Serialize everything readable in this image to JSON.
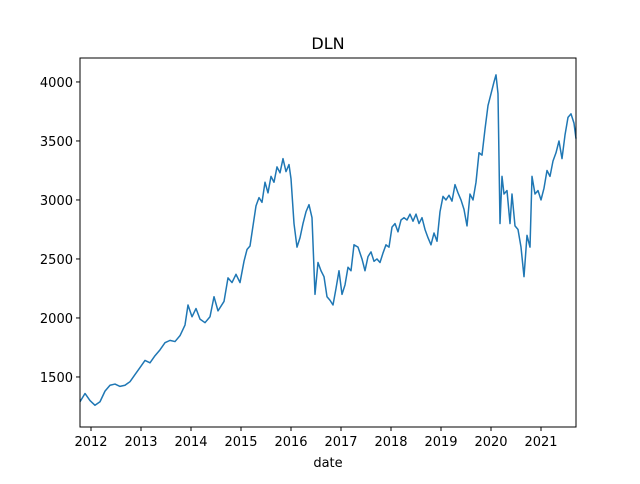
{
  "chart_data": {
    "type": "line",
    "title": "DLN",
    "xlabel": "date",
    "x": [
      2011.78,
      2011.88,
      2011.98,
      2012.08,
      2012.18,
      2012.28,
      2012.38,
      2012.48,
      2012.58,
      2012.68,
      2012.78,
      2012.88,
      2012.98,
      2013.08,
      2013.18,
      2013.28,
      2013.38,
      2013.48,
      2013.58,
      2013.68,
      2013.78,
      2013.88,
      2013.94,
      2014.02,
      2014.1,
      2014.18,
      2014.28,
      2014.38,
      2014.46,
      2014.54,
      2014.66,
      2014.74,
      2014.82,
      2014.9,
      2014.98,
      2015.06,
      2015.12,
      2015.18,
      2015.24,
      2015.3,
      2015.36,
      2015.42,
      2015.48,
      2015.54,
      2015.6,
      2015.66,
      2015.72,
      2015.78,
      2015.84,
      2015.9,
      2015.96,
      2016.0,
      2016.06,
      2016.12,
      2016.18,
      2016.24,
      2016.3,
      2016.36,
      2016.42,
      2016.48,
      2016.54,
      2016.6,
      2016.66,
      2016.72,
      2016.78,
      2016.84,
      2016.9,
      2016.96,
      2017.02,
      2017.08,
      2017.14,
      2017.2,
      2017.26,
      2017.34,
      2017.42,
      2017.48,
      2017.54,
      2017.6,
      2017.66,
      2017.72,
      2017.78,
      2017.84,
      2017.9,
      2017.96,
      2018.02,
      2018.08,
      2018.14,
      2018.2,
      2018.26,
      2018.32,
      2018.38,
      2018.44,
      2018.5,
      2018.56,
      2018.62,
      2018.68,
      2018.74,
      2018.8,
      2018.86,
      2018.92,
      2018.98,
      2019.04,
      2019.1,
      2019.16,
      2019.22,
      2019.28,
      2019.34,
      2019.4,
      2019.46,
      2019.52,
      2019.58,
      2019.64,
      2019.7,
      2019.76,
      2019.82,
      2019.88,
      2019.94,
      2020.0,
      2020.06,
      2020.1,
      2020.14,
      2020.18,
      2020.22,
      2020.26,
      2020.32,
      2020.38,
      2020.42,
      2020.48,
      2020.54,
      2020.6,
      2020.66,
      2020.72,
      2020.78,
      2020.82,
      2020.88,
      2020.94,
      2021.0,
      2021.06,
      2021.12,
      2021.18,
      2021.24,
      2021.3,
      2021.36,
      2021.42,
      2021.48,
      2021.54,
      2021.6,
      2021.66,
      2021.7
    ],
    "series": [
      {
        "name": "DLN",
        "color": "#1f77b4",
        "values": [
          1290,
          1360,
          1300,
          1260,
          1290,
          1380,
          1430,
          1440,
          1420,
          1430,
          1460,
          1520,
          1580,
          1640,
          1620,
          1680,
          1730,
          1790,
          1810,
          1800,
          1850,
          1940,
          2110,
          2010,
          2080,
          1990,
          1960,
          2010,
          2180,
          2060,
          2140,
          2340,
          2300,
          2370,
          2300,
          2480,
          2580,
          2610,
          2780,
          2950,
          3020,
          2980,
          3150,
          3060,
          3200,
          3150,
          3280,
          3230,
          3350,
          3240,
          3300,
          3180,
          2800,
          2600,
          2680,
          2800,
          2900,
          2960,
          2850,
          2200,
          2470,
          2400,
          2350,
          2180,
          2150,
          2110,
          2250,
          2400,
          2200,
          2280,
          2430,
          2400,
          2620,
          2600,
          2500,
          2400,
          2520,
          2560,
          2480,
          2500,
          2470,
          2550,
          2620,
          2600,
          2770,
          2800,
          2730,
          2830,
          2850,
          2830,
          2880,
          2820,
          2880,
          2800,
          2850,
          2750,
          2680,
          2620,
          2720,
          2650,
          2900,
          3030,
          3000,
          3040,
          2990,
          3130,
          3060,
          3000,
          2920,
          2780,
          3050,
          3000,
          3150,
          3400,
          3380,
          3600,
          3800,
          3900,
          4000,
          4060,
          3900,
          2800,
          3200,
          3050,
          3080,
          2800,
          3050,
          2780,
          2750,
          2600,
          2350,
          2700,
          2600,
          3200,
          3050,
          3080,
          3000,
          3100,
          3250,
          3200,
          3330,
          3400,
          3500,
          3350,
          3550,
          3700,
          3730,
          3650,
          3520
        ]
      }
    ],
    "xlim": [
      2011.78,
      2021.7
    ],
    "xticks": [
      2012,
      2013,
      2014,
      2015,
      2016,
      2017,
      2018,
      2019,
      2020,
      2021
    ],
    "ylim": [
      1076,
      4203
    ],
    "yticks": [
      1500,
      2000,
      2500,
      3000,
      3500,
      4000
    ]
  }
}
